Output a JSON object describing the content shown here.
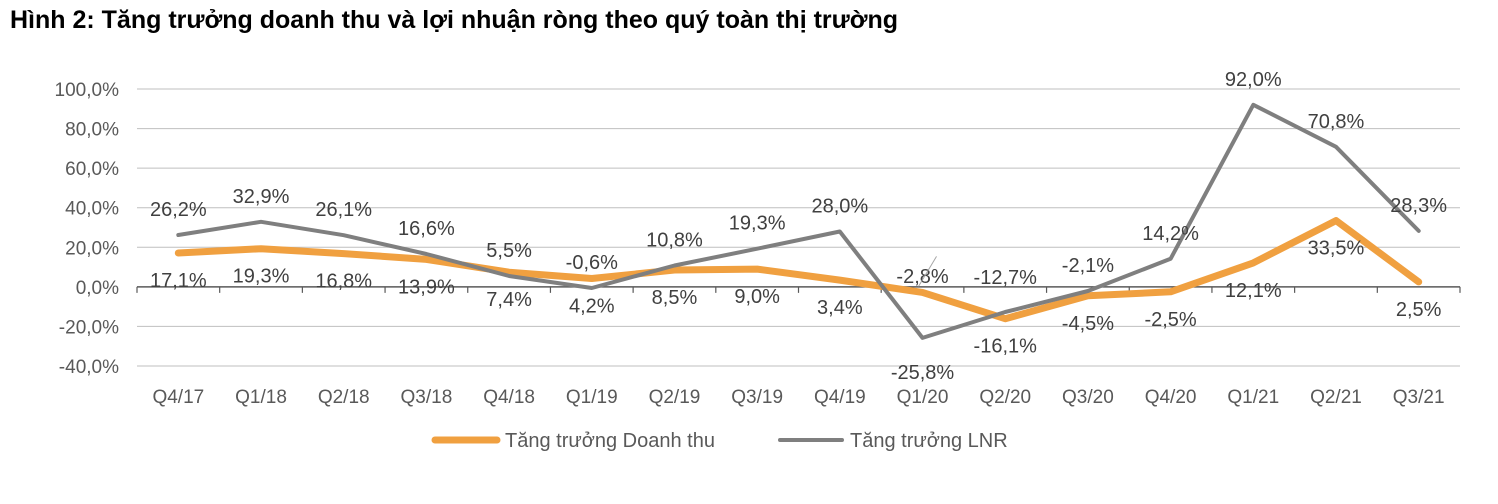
{
  "chart_data": {
    "type": "line",
    "title": "Hình 2: Tăng trưởng doanh thu và lợi nhuận ròng theo quý toàn thị trường",
    "categories": [
      "Q4/17",
      "Q1/18",
      "Q2/18",
      "Q3/18",
      "Q4/18",
      "Q1/19",
      "Q2/19",
      "Q3/19",
      "Q4/19",
      "Q1/20",
      "Q2/20",
      "Q3/20",
      "Q4/20",
      "Q1/21",
      "Q2/21",
      "Q3/21"
    ],
    "ylim": [
      -40,
      100
    ],
    "yticks": [
      -40,
      -20,
      0,
      20,
      40,
      60,
      80,
      100
    ],
    "ytick_labels": [
      "-40,0%",
      "-20,0%",
      "0,0%",
      "20,0%",
      "40,0%",
      "60,0%",
      "80,0%",
      "100,0%"
    ],
    "grid": true,
    "legend_position": "bottom",
    "series": [
      {
        "name": "Tăng trưởng Doanh thu",
        "color": "#F0A040",
        "values": [
          17.1,
          19.3,
          16.8,
          13.9,
          7.4,
          4.2,
          8.5,
          9.0,
          3.4,
          -2.8,
          -16.1,
          -4.5,
          -2.5,
          12.1,
          33.5,
          2.5
        ],
        "labels": [
          "17,1%",
          "19,3%",
          "16,8%",
          "13,9%",
          "7,4%",
          "4,2%",
          "8,5%",
          "9,0%",
          "3,4%",
          "-2,8%",
          "-16,1%",
          "-4,5%",
          "-2,5%",
          "12,1%",
          "33,5%",
          "2,5%"
        ]
      },
      {
        "name": "Tăng trưởng LNR",
        "color": "#7F7F7F",
        "values": [
          26.2,
          32.9,
          26.1,
          16.6,
          5.5,
          -0.6,
          10.8,
          19.3,
          28.0,
          -25.8,
          -12.7,
          -2.1,
          14.2,
          92.0,
          70.8,
          28.3
        ],
        "labels": [
          "26,2%",
          "32,9%",
          "26,1%",
          "16,6%",
          "5,5%",
          "-0,6%",
          "10,8%",
          "19,3%",
          "28,0%",
          "-25,8%",
          "-12,7%",
          "-2,1%",
          "14,2%",
          "92,0%",
          "70,8%",
          "28,3%"
        ]
      }
    ]
  }
}
